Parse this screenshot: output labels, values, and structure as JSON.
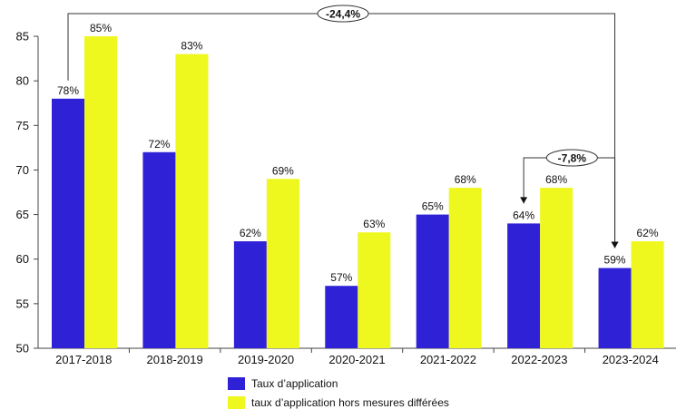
{
  "chart_data": {
    "type": "bar",
    "categories": [
      "2017-2018",
      "2018-2019",
      "2019-2020",
      "2020-2021",
      "2021-2022",
      "2022-2023",
      "2023-2024"
    ],
    "series": [
      {
        "name": "Taux d’application",
        "color": "#2f22d6",
        "values": [
          78,
          72,
          62,
          57,
          65,
          64,
          59
        ],
        "labels": [
          "78%",
          "72%",
          "62%",
          "57%",
          "65%",
          "64%",
          "59%"
        ]
      },
      {
        "name": "taux d’application hors mesures différées",
        "color": "#eef71e",
        "values": [
          85,
          83,
          69,
          63,
          68,
          68,
          62
        ],
        "labels": [
          "85%",
          "83%",
          "69%",
          "63%",
          "68%",
          "68%",
          "62%"
        ]
      }
    ],
    "ylim": [
      50,
      85
    ],
    "yticks": [
      "50",
      "55",
      "60",
      "65",
      "70",
      "75",
      "80",
      "85"
    ],
    "grid": false,
    "legend_position": "bottom",
    "annotations": [
      {
        "text": "-24,4%",
        "from_category": "2017-2018",
        "to_category": "2023-2024"
      },
      {
        "text": "-7,8%",
        "from_category": "2022-2023",
        "to_category": "2023-2024"
      }
    ]
  }
}
